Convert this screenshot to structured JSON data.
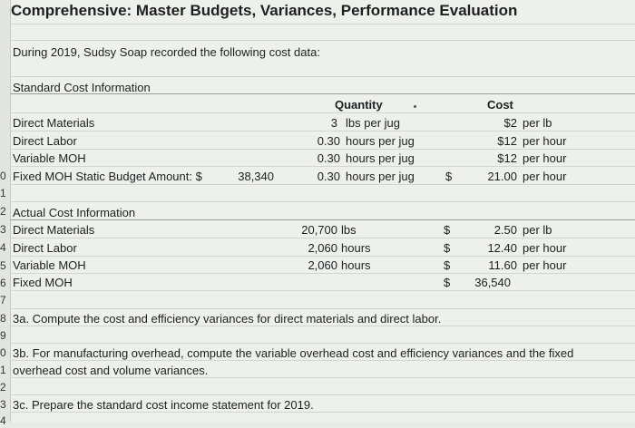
{
  "title": "Comprehensive: Master Budgets, Variances, Performance Evaluation",
  "intro": "During 2019, Sudsy Soap recorded the following cost data:",
  "standard": {
    "heading": "Standard Cost Information",
    "col_quantity": "Quantity",
    "col_cost": "Cost",
    "rows": [
      {
        "label": "Direct Materials",
        "qty_num": "3",
        "qty_unit": "lbs per jug",
        "cost_sym": "",
        "cost": "$2",
        "cost_unit": "per lb"
      },
      {
        "label": "Direct Labor",
        "qty_num": "0.30",
        "qty_unit": "hours per jug",
        "cost_sym": "",
        "cost": "$12",
        "cost_unit": "per hour"
      },
      {
        "label": "Variable MOH",
        "qty_num": "0.30",
        "qty_unit": "hours per jug",
        "cost_sym": "",
        "cost": "$12",
        "cost_unit": "per hour"
      },
      {
        "label": "Fixed MOH Static Budget Amount: $",
        "amount": "38,340",
        "qty_num": "0.30",
        "qty_unit": "hours per jug",
        "cost_sym": "$",
        "cost": "21.00",
        "cost_unit": "per hour"
      }
    ]
  },
  "actual": {
    "heading": "Actual Cost Information",
    "rows": [
      {
        "label": "Direct Materials",
        "qty_num": "20,700",
        "qty_unit": "lbs",
        "sym": "$",
        "cost": "2.50",
        "cost_unit": "per lb"
      },
      {
        "label": "Direct Labor",
        "qty_num": "2,060",
        "qty_unit": "hours",
        "sym": "$",
        "cost": "12.40",
        "cost_unit": "per hour"
      },
      {
        "label": "Variable MOH",
        "qty_num": "2,060",
        "qty_unit": "hours",
        "sym": "$",
        "cost": "11.60",
        "cost_unit": "per hour"
      },
      {
        "label": "Fixed MOH",
        "qty_num": "",
        "qty_unit": "",
        "sym": "$",
        "cost": "36,540",
        "cost_unit": ""
      }
    ]
  },
  "questions": {
    "q3a": "3a. Compute the cost and efficiency variances for direct materials and direct labor.",
    "q3b_line1": "3b. For manufacturing overhead, compute the variable overhead cost and efficiency variances and the fixed",
    "q3b_line2": "overhead cost and volume variances.",
    "q3c": "3c. Prepare the standard cost income statement for 2019."
  },
  "row_numbers": [
    "0",
    "1",
    "2",
    "3",
    "4",
    "5",
    "6",
    "7",
    "8",
    "9",
    "0",
    "1",
    "2",
    "3",
    "4"
  ]
}
